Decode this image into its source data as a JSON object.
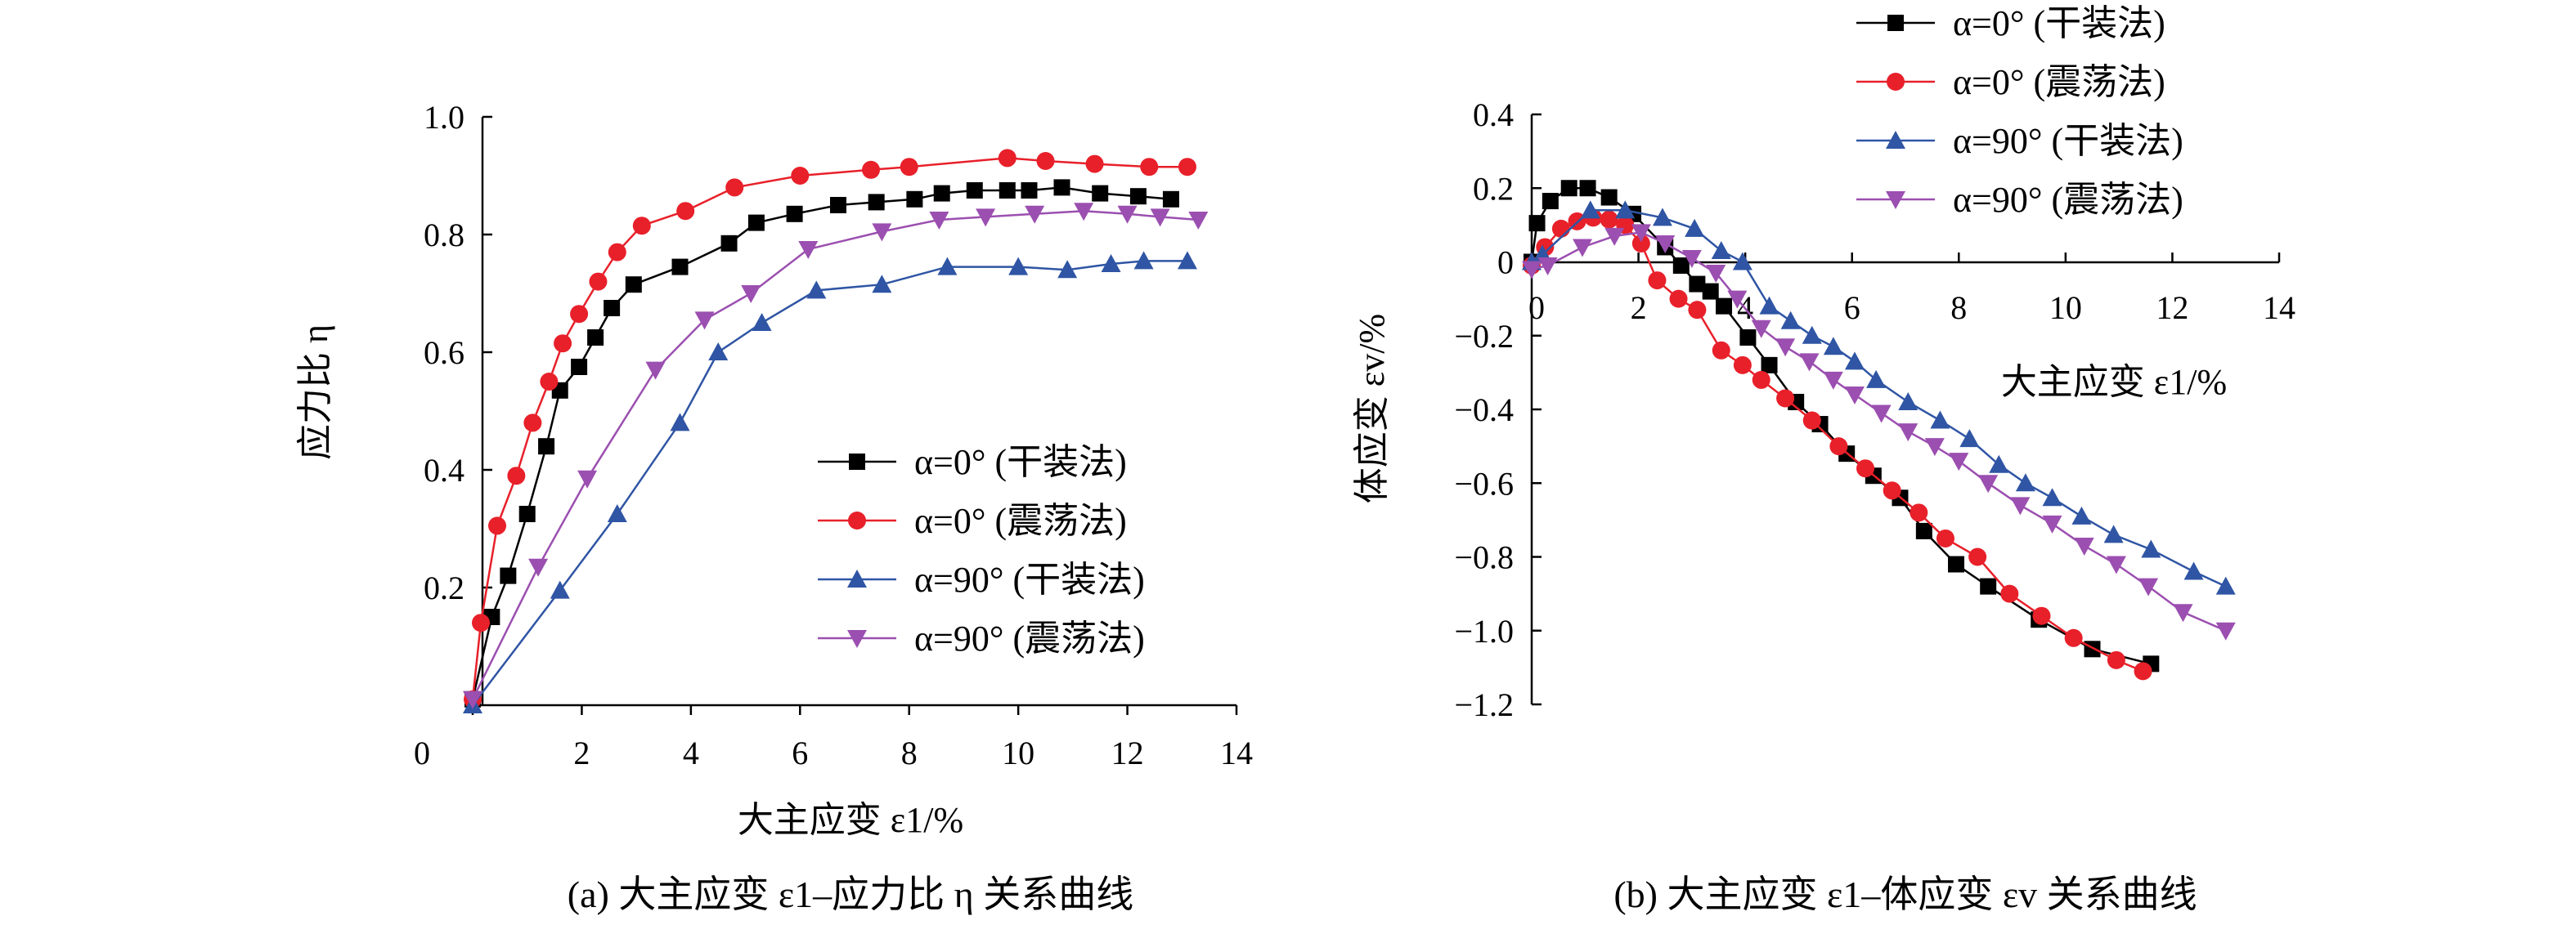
{
  "colors": {
    "black": "#000000",
    "red": "#e8202a",
    "blue": "#2f55a4",
    "purple": "#9b4fb0"
  },
  "chart_data": [
    {
      "type": "line",
      "panel": "a",
      "xlabel": "大主应变 ε1/%",
      "ylabel": "应力比 η",
      "caption": "(a) 大主应变 ε1–应力比 η 关系曲线",
      "xlim": [
        0,
        14
      ],
      "ylim": [
        0,
        1.0
      ],
      "xticks": [
        "0",
        "2",
        "4",
        "6",
        "8",
        "10",
        "12",
        "14"
      ],
      "yticks": [
        "0.2",
        "0.4",
        "0.6",
        "0.8",
        "1.0"
      ],
      "legend_position": "bottom-right",
      "series": [
        {
          "name": "α=0°  (干装法)",
          "color": "#000000",
          "marker": "square",
          "x": [
            0,
            0.35,
            0.65,
            1.0,
            1.35,
            1.6,
            1.95,
            2.25,
            2.55,
            2.95,
            3.8,
            4.7,
            5.2,
            5.9,
            6.7,
            7.4,
            8.1,
            8.6,
            9.2,
            9.8,
            10.2,
            10.8,
            11.5,
            12.2,
            12.8
          ],
          "y": [
            0.01,
            0.15,
            0.22,
            0.325,
            0.44,
            0.535,
            0.575,
            0.625,
            0.675,
            0.715,
            0.745,
            0.785,
            0.82,
            0.835,
            0.85,
            0.855,
            0.86,
            0.87,
            0.875,
            0.875,
            0.875,
            0.88,
            0.87,
            0.865,
            0.86
          ]
        },
        {
          "name": "α=0°  (震荡法)",
          "color": "#e8202a",
          "marker": "circle",
          "x": [
            0,
            0.15,
            0.45,
            0.8,
            1.1,
            1.4,
            1.65,
            1.95,
            2.3,
            2.65,
            3.1,
            3.9,
            4.8,
            6.0,
            7.3,
            8.0,
            9.8,
            10.5,
            11.4,
            12.4,
            13.1
          ],
          "y": [
            0.01,
            0.14,
            0.305,
            0.39,
            0.48,
            0.55,
            0.615,
            0.665,
            0.72,
            0.77,
            0.815,
            0.84,
            0.88,
            0.9,
            0.91,
            0.915,
            0.93,
            0.925,
            0.92,
            0.915,
            0.915
          ]
        },
        {
          "name": "α=90° (干装法)",
          "color": "#2f55a4",
          "marker": "triangle-up",
          "x": [
            0,
            1.6,
            2.65,
            3.8,
            4.5,
            5.3,
            6.3,
            7.5,
            8.7,
            10.0,
            10.9,
            11.7,
            12.3,
            13.1
          ],
          "y": [
            0.0,
            0.195,
            0.325,
            0.48,
            0.6,
            0.65,
            0.705,
            0.715,
            0.745,
            0.745,
            0.74,
            0.75,
            0.755,
            0.755
          ]
        },
        {
          "name": "α=90° (震荡法)",
          "color": "#9b4fb0",
          "marker": "triangle-down",
          "x": [
            0,
            1.2,
            2.1,
            3.35,
            4.25,
            5.1,
            6.15,
            7.5,
            8.55,
            9.4,
            10.3,
            11.2,
            12.0,
            12.6,
            13.3
          ],
          "y": [
            0.01,
            0.235,
            0.385,
            0.57,
            0.655,
            0.7,
            0.775,
            0.805,
            0.825,
            0.83,
            0.835,
            0.84,
            0.835,
            0.83,
            0.825
          ]
        }
      ]
    },
    {
      "type": "line",
      "panel": "b",
      "xlabel": "大主应变 ε1/%",
      "ylabel": "体应变 εv/%",
      "caption": "(b) 大主应变 ε1–体应变 εv 关系曲线",
      "xlim": [
        0,
        14
      ],
      "ylim": [
        -1.2,
        0.4
      ],
      "xticks": [
        "0",
        "2",
        "4",
        "6",
        "8",
        "10",
        "12",
        "14"
      ],
      "yticks": [
        "0.4",
        "0.2",
        "0",
        "−0.2",
        "−0.4",
        "−0.6",
        "−0.8",
        "−1.0",
        "−1.2"
      ],
      "legend_position": "top-right",
      "series": [
        {
          "name": "α=0°  (干装法)",
          "color": "#000000",
          "marker": "square",
          "x": [
            0,
            0.1,
            0.35,
            0.7,
            1.05,
            1.45,
            1.9,
            2.5,
            2.8,
            3.1,
            3.35,
            3.6,
            4.05,
            4.45,
            4.95,
            5.4,
            5.9,
            6.4,
            6.9,
            7.35,
            7.95,
            8.55,
            9.5,
            10.5,
            11.6
          ],
          "y": [
            0.0,
            0.105,
            0.165,
            0.2,
            0.2,
            0.175,
            0.13,
            0.04,
            -0.01,
            -0.06,
            -0.08,
            -0.12,
            -0.205,
            -0.28,
            -0.38,
            -0.44,
            -0.52,
            -0.58,
            -0.64,
            -0.73,
            -0.82,
            -0.88,
            -0.97,
            -1.05,
            -1.09
          ]
        },
        {
          "name": "α=0°  (震荡法)",
          "color": "#e8202a",
          "marker": "circle",
          "x": [
            0,
            0.25,
            0.55,
            0.85,
            1.15,
            1.45,
            1.75,
            2.05,
            2.35,
            2.75,
            3.1,
            3.55,
            3.95,
            4.3,
            4.75,
            5.25,
            5.75,
            6.25,
            6.75,
            7.25,
            7.75,
            8.35,
            8.95,
            9.55,
            10.15,
            10.95,
            11.45
          ],
          "y": [
            -0.01,
            0.04,
            0.09,
            0.11,
            0.12,
            0.115,
            0.1,
            0.05,
            -0.05,
            -0.1,
            -0.13,
            -0.24,
            -0.28,
            -0.32,
            -0.37,
            -0.43,
            -0.5,
            -0.56,
            -0.62,
            -0.68,
            -0.75,
            -0.8,
            -0.9,
            -0.96,
            -1.02,
            -1.08,
            -1.11
          ]
        },
        {
          "name": "α=90° (干装法)",
          "color": "#2f55a4",
          "marker": "triangle-up",
          "x": [
            0,
            0.2,
            1.1,
            1.75,
            2.45,
            3.05,
            3.55,
            3.95,
            4.45,
            4.85,
            5.25,
            5.65,
            6.05,
            6.45,
            7.05,
            7.65,
            8.2,
            8.75,
            9.25,
            9.75,
            10.3,
            10.9,
            11.6,
            12.4,
            13.0
          ],
          "y": [
            0.0,
            0.02,
            0.14,
            0.14,
            0.12,
            0.09,
            0.03,
            0.0,
            -0.12,
            -0.16,
            -0.2,
            -0.23,
            -0.27,
            -0.32,
            -0.38,
            -0.43,
            -0.48,
            -0.55,
            -0.6,
            -0.64,
            -0.69,
            -0.74,
            -0.78,
            -0.84,
            -0.88
          ]
        },
        {
          "name": "α=90° (震荡法)",
          "color": "#9b4fb0",
          "marker": "triangle-down",
          "x": [
            0,
            0.3,
            0.95,
            1.55,
            2.05,
            2.5,
            3.0,
            3.45,
            3.85,
            4.3,
            4.75,
            5.2,
            5.65,
            6.05,
            6.55,
            7.05,
            7.55,
            8.0,
            8.55,
            9.15,
            9.75,
            10.35,
            10.95,
            11.55,
            12.2,
            13.0
          ],
          "y": [
            -0.02,
            -0.01,
            0.04,
            0.07,
            0.08,
            0.05,
            0.01,
            -0.03,
            -0.1,
            -0.18,
            -0.23,
            -0.27,
            -0.32,
            -0.36,
            -0.41,
            -0.46,
            -0.5,
            -0.54,
            -0.6,
            -0.66,
            -0.71,
            -0.77,
            -0.82,
            -0.88,
            -0.95,
            -1.0
          ]
        }
      ]
    }
  ]
}
